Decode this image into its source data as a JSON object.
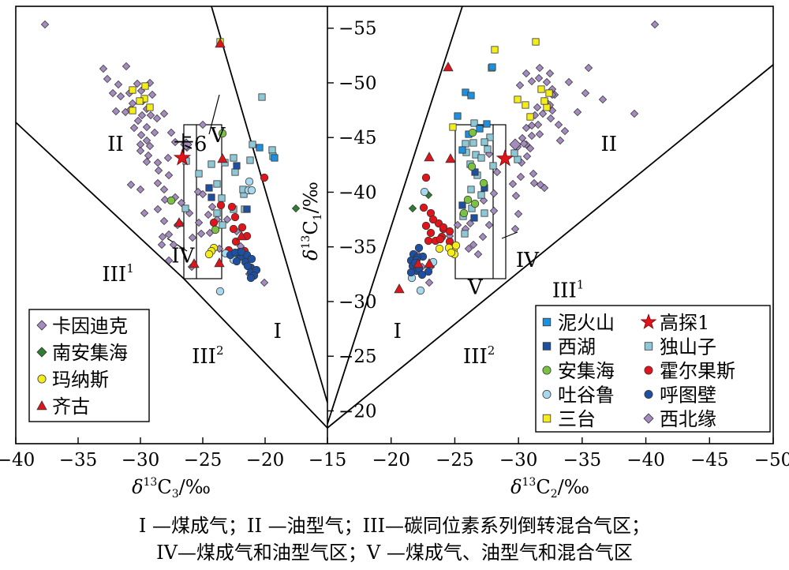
{
  "chart_data": {
    "type": "scatter",
    "left_panel": {
      "xlabel_parts": [
        "δ",
        "13",
        "C",
        "3",
        "/‰"
      ],
      "x_ticks": [
        -40,
        -35,
        -30,
        -25,
        -20,
        -15
      ],
      "xlim": [
        -40,
        -15
      ],
      "ylim": [
        -57,
        -17
      ],
      "region_labels": [
        {
          "text": "II",
          "x": -32,
          "y": -44.5
        },
        {
          "text": "卡6",
          "x": -26,
          "y": -44.5
        },
        {
          "text": "V",
          "x": -23.8,
          "y": -45.3
        },
        {
          "text": "IV",
          "x": -26.6,
          "y": -34.3
        },
        {
          "text": "III",
          "sup": "1",
          "x": -31.8,
          "y": -32.6
        },
        {
          "text": "III",
          "sup": "2",
          "x": -24.6,
          "y": -25.1
        },
        {
          "text": "I",
          "x": -19,
          "y": -27.4
        }
      ]
    },
    "right_panel": {
      "xlabel_parts": [
        "δ",
        "13",
        "C",
        "2",
        "/‰"
      ],
      "ylabel_parts": [
        "δ",
        "13",
        "C",
        "1",
        "/‰"
      ],
      "x_ticks": [
        -20,
        -25,
        -30,
        -35,
        -40,
        -45,
        -50
      ],
      "xlim": [
        -15,
        -50
      ],
      "y_ticks": [
        -55,
        -50,
        -45,
        -40,
        -35,
        -30,
        -25,
        -20
      ],
      "ylim": [
        -57,
        -17
      ],
      "region_labels": [
        {
          "text": "II",
          "x": -37.1,
          "y": -44.5
        },
        {
          "text": "IV",
          "x": -30.7,
          "y": -33.9
        },
        {
          "text": "V",
          "x": -26.6,
          "y": -31.4
        },
        {
          "text": "III",
          "sup": "1",
          "x": -33.9,
          "y": -31.1
        },
        {
          "text": "III",
          "sup": "2",
          "x": -26.9,
          "y": -25.1
        },
        {
          "text": "I",
          "x": -20.5,
          "y": -27.4
        }
      ]
    },
    "legend_left": [
      {
        "name": "卡因迪克",
        "marker": "diamond",
        "color": "#a58bc0"
      },
      {
        "name": "南安集海",
        "marker": "diamond",
        "color": "#2e7d32"
      },
      {
        "name": "玛纳斯",
        "marker": "circle",
        "color": "#f5ec1c"
      },
      {
        "name": "齐古",
        "marker": "triangle",
        "color": "#e0141b"
      }
    ],
    "legend_right": [
      {
        "name": "泥火山",
        "marker": "square",
        "color": "#1e90e0"
      },
      {
        "name": "高探1",
        "marker": "star",
        "color": "#e0141b"
      },
      {
        "name": "西湖",
        "marker": "square",
        "color": "#1e4fa0"
      },
      {
        "name": "独山子",
        "marker": "square",
        "color": "#8ec8d6"
      },
      {
        "name": "安集海",
        "marker": "circle",
        "color": "#7cc242"
      },
      {
        "name": "霍尔果斯",
        "marker": "circle",
        "color": "#e0141b"
      },
      {
        "name": "吐谷鲁",
        "marker": "circle",
        "color": "#a8d8ee"
      },
      {
        "name": "呼图壁",
        "marker": "circle",
        "color": "#1e4fa0"
      },
      {
        "name": "三台",
        "marker": "square",
        "color": "#f5ec1c"
      },
      {
        "name": "西北缘",
        "marker": "diamond",
        "color": "#a58bc0"
      }
    ],
    "caption_line1": "I —煤成气；II —油型气；III—碳同位素系列倒转混合气区；",
    "caption_line2": "IV—煤成气和油型气区；V —煤成气、油型气和混合气区"
  }
}
